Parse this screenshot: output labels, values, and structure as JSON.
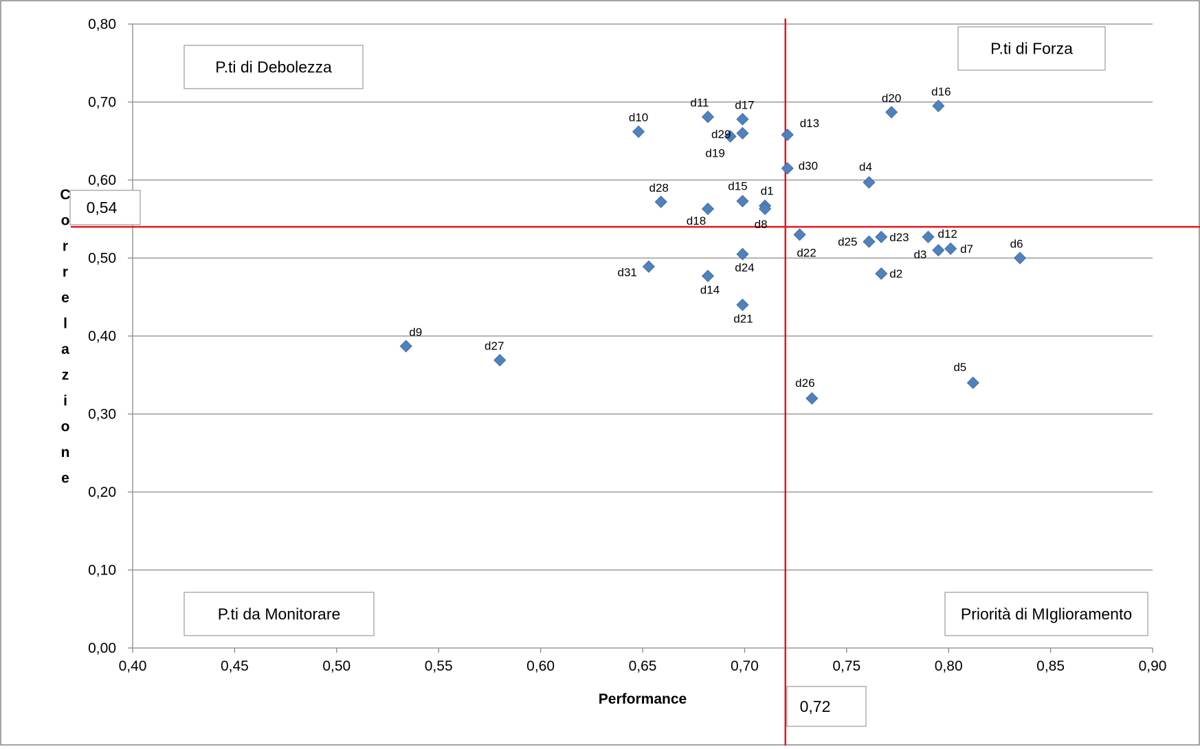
{
  "chart_data": {
    "type": "scatter",
    "title": "",
    "xlabel": "Performance",
    "ylabel": "Correlazione",
    "xlim": [
      0.4,
      0.9
    ],
    "ylim": [
      0.0,
      0.8
    ],
    "x_ticks": [
      0.4,
      0.45,
      0.5,
      0.55,
      0.6,
      0.65,
      0.7,
      0.75,
      0.8,
      0.85,
      0.9
    ],
    "y_ticks": [
      0.0,
      0.1,
      0.2,
      0.3,
      0.4,
      0.5,
      0.6,
      0.7,
      0.8
    ],
    "x_tick_labels": [
      "0,40",
      "0,45",
      "0,50",
      "0,55",
      "0,60",
      "0,65",
      "0,70",
      "0,75",
      "0,80",
      "0,85",
      "0,90"
    ],
    "y_tick_labels": [
      "0,00",
      "0,10",
      "0,20",
      "0,30",
      "0,40",
      "0,50",
      "0,60",
      "0,70",
      "0,80"
    ],
    "grid": "horizontal",
    "marker_color": "#4f81bd",
    "threshold_color": "#e8141c",
    "thresholds": {
      "x": 0.72,
      "x_label": "0,72",
      "y": 0.54,
      "y_label": "0,54"
    },
    "quadrants": {
      "top_left": "P.ti di Debolezza",
      "top_right": "P.ti di Forza",
      "bottom_left": "P.ti da  Monitorare",
      "bottom_right": "Priorità di MIglioramento"
    },
    "points": [
      {
        "label": "d1",
        "x": 0.71,
        "y": 0.567
      },
      {
        "label": "d2",
        "x": 0.767,
        "y": 0.48
      },
      {
        "label": "d3",
        "x": 0.795,
        "y": 0.51
      },
      {
        "label": "d4",
        "x": 0.761,
        "y": 0.597
      },
      {
        "label": "d5",
        "x": 0.812,
        "y": 0.34
      },
      {
        "label": "d6",
        "x": 0.835,
        "y": 0.5
      },
      {
        "label": "d7",
        "x": 0.801,
        "y": 0.512
      },
      {
        "label": "d8",
        "x": 0.71,
        "y": 0.563
      },
      {
        "label": "d9",
        "x": 0.534,
        "y": 0.387
      },
      {
        "label": "d10",
        "x": 0.648,
        "y": 0.662
      },
      {
        "label": "d11",
        "x": 0.682,
        "y": 0.681
      },
      {
        "label": "d12",
        "x": 0.79,
        "y": 0.527
      },
      {
        "label": "d13",
        "x": 0.721,
        "y": 0.658
      },
      {
        "label": "d14",
        "x": 0.682,
        "y": 0.477
      },
      {
        "label": "d15",
        "x": 0.699,
        "y": 0.573
      },
      {
        "label": "d16",
        "x": 0.795,
        "y": 0.695
      },
      {
        "label": "d17",
        "x": 0.699,
        "y": 0.678
      },
      {
        "label": "d18",
        "x": 0.682,
        "y": 0.563
      },
      {
        "label": "d19",
        "x": 0.693,
        "y": 0.656
      },
      {
        "label": "d20",
        "x": 0.772,
        "y": 0.687
      },
      {
        "label": "d21",
        "x": 0.699,
        "y": 0.44
      },
      {
        "label": "d22",
        "x": 0.727,
        "y": 0.53
      },
      {
        "label": "d23",
        "x": 0.767,
        "y": 0.527
      },
      {
        "label": "d24",
        "x": 0.699,
        "y": 0.505
      },
      {
        "label": "d25",
        "x": 0.761,
        "y": 0.521
      },
      {
        "label": "d26",
        "x": 0.733,
        "y": 0.32
      },
      {
        "label": "d27",
        "x": 0.58,
        "y": 0.369
      },
      {
        "label": "d28",
        "x": 0.659,
        "y": 0.572
      },
      {
        "label": "d29",
        "x": 0.699,
        "y": 0.66
      },
      {
        "label": "d30",
        "x": 0.721,
        "y": 0.615
      },
      {
        "label": "d31",
        "x": 0.653,
        "y": 0.489
      }
    ]
  }
}
